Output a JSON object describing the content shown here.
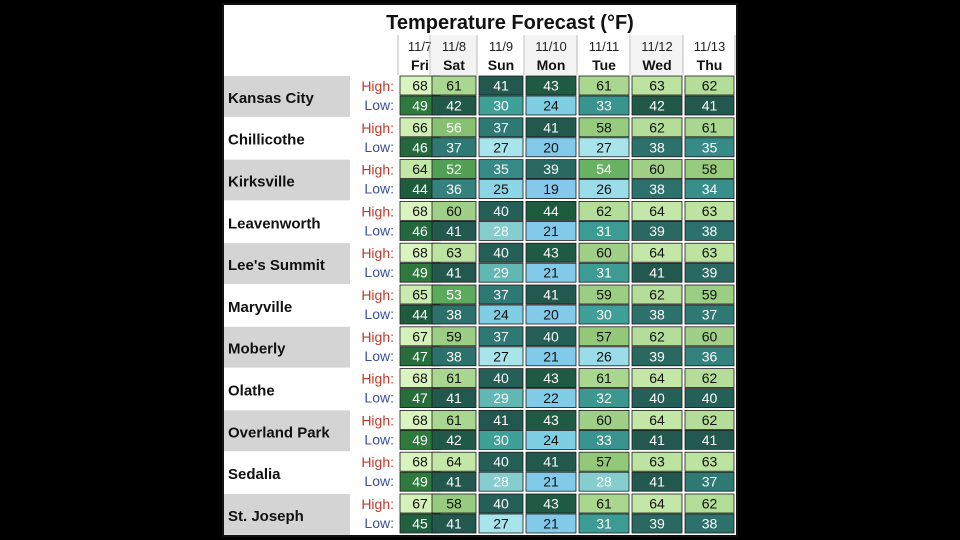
{
  "chart_data": {
    "type": "table",
    "title": "Temperature Forecast (°F)",
    "dates": [
      "11/7",
      "11/8",
      "11/9",
      "11/10",
      "11/11",
      "11/12",
      "11/13"
    ],
    "days": [
      "Fri",
      "Sat",
      "Sun",
      "Mon",
      "Tue",
      "Wed",
      "Thu"
    ],
    "high_label": "High:",
    "low_label": "Low:",
    "cities": [
      {
        "name": "Kansas City",
        "high": [
          68,
          61,
          41,
          43,
          61,
          63,
          62
        ],
        "low": [
          49,
          42,
          30,
          24,
          33,
          42,
          41
        ]
      },
      {
        "name": "Chillicothe",
        "high": [
          66,
          56,
          37,
          41,
          58,
          62,
          61
        ],
        "low": [
          46,
          37,
          27,
          20,
          27,
          38,
          35
        ]
      },
      {
        "name": "Kirksville",
        "high": [
          64,
          52,
          35,
          39,
          54,
          60,
          58
        ],
        "low": [
          44,
          36,
          25,
          19,
          26,
          38,
          34
        ]
      },
      {
        "name": "Leavenworth",
        "high": [
          68,
          60,
          40,
          44,
          62,
          64,
          63
        ],
        "low": [
          46,
          41,
          28,
          21,
          31,
          39,
          38
        ]
      },
      {
        "name": "Lee's Summit",
        "high": [
          68,
          63,
          40,
          43,
          60,
          64,
          63
        ],
        "low": [
          49,
          41,
          29,
          21,
          31,
          41,
          39
        ]
      },
      {
        "name": "Maryville",
        "high": [
          65,
          53,
          37,
          41,
          59,
          62,
          59
        ],
        "low": [
          44,
          38,
          24,
          20,
          30,
          38,
          37
        ]
      },
      {
        "name": "Moberly",
        "high": [
          67,
          59,
          37,
          40,
          57,
          62,
          60
        ],
        "low": [
          47,
          38,
          27,
          21,
          26,
          39,
          36
        ]
      },
      {
        "name": "Olathe",
        "high": [
          68,
          61,
          40,
          43,
          61,
          64,
          62
        ],
        "low": [
          47,
          41,
          29,
          22,
          32,
          40,
          40
        ]
      },
      {
        "name": "Overland Park",
        "high": [
          68,
          61,
          41,
          43,
          60,
          64,
          62
        ],
        "low": [
          49,
          42,
          30,
          24,
          33,
          41,
          41
        ]
      },
      {
        "name": "Sedalia",
        "high": [
          68,
          64,
          40,
          41,
          57,
          63,
          63
        ],
        "low": [
          49,
          41,
          28,
          21,
          28,
          41,
          37
        ]
      },
      {
        "name": "St. Joseph",
        "high": [
          67,
          58,
          40,
          43,
          61,
          64,
          62
        ],
        "low": [
          45,
          41,
          27,
          21,
          31,
          39,
          38
        ]
      }
    ],
    "colors": {
      "high_label": "#c0392b",
      "low_label": "#3b4fa0",
      "city_band": "#d4d4d4",
      "title": "#111111"
    }
  }
}
